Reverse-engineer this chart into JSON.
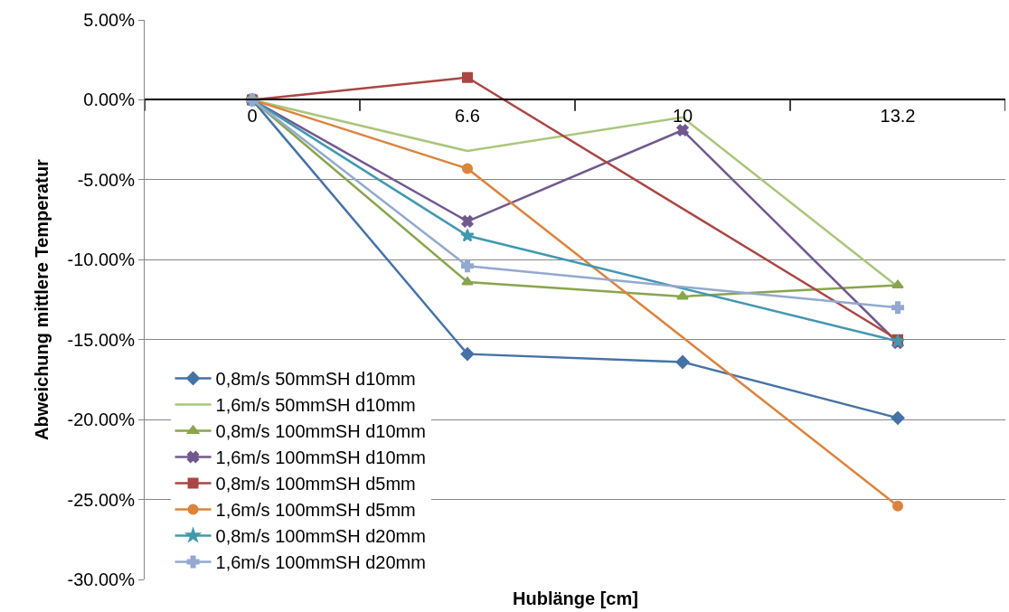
{
  "chart_data": {
    "type": "line",
    "xlabel": "Hublänge [cm]",
    "ylabel": "Abweichung mittlere Temperatur",
    "categories": [
      "0",
      "6.6",
      "10",
      "13.2"
    ],
    "ylim": [
      -30,
      5
    ],
    "yticks": [
      {
        "value": -30,
        "label": "-30.00%"
      },
      {
        "value": -25,
        "label": "-25.00%"
      },
      {
        "value": -20,
        "label": "-20.00%"
      },
      {
        "value": -15,
        "label": "-15.00%"
      },
      {
        "value": -10,
        "label": "-10.00%"
      },
      {
        "value": -5,
        "label": "-5.00%"
      },
      {
        "value": 0,
        "label": "0.00%"
      },
      {
        "value": 5,
        "label": "5.00%"
      }
    ],
    "grid": "y",
    "legend": "bottom left",
    "series": [
      {
        "name": "0,8m/s 50mmSH d10mm",
        "color": "#4572a7",
        "marker": "diamond",
        "values": [
          0,
          -15.9,
          -16.4,
          -19.9
        ]
      },
      {
        "name": "1,6m/s 50mmSH d10mm",
        "color": "#aac67c",
        "marker": "none",
        "values": [
          0,
          -3.2,
          -1.1,
          -11.7
        ]
      },
      {
        "name": "0,8m/s 100mmSH d10mm",
        "color": "#89a54e",
        "marker": "triangle",
        "values": [
          0,
          -11.4,
          -12.3,
          -11.6
        ]
      },
      {
        "name": "1,6m/s 100mmSH d10mm",
        "color": "#71588f",
        "marker": "cross",
        "values": [
          0,
          -7.6,
          -1.9,
          -15.2
        ]
      },
      {
        "name": "0,8m/s 100mmSH d5mm",
        "color": "#aa4643",
        "marker": "square",
        "values": [
          0,
          1.4,
          null,
          -15.0
        ]
      },
      {
        "name": "1,6m/s 100mmSH d5mm",
        "color": "#db843d",
        "marker": "circle",
        "values": [
          0,
          -4.3,
          null,
          -25.4
        ]
      },
      {
        "name": "0,8m/s 100mmSH d20mm",
        "color": "#4198af",
        "marker": "star",
        "values": [
          0,
          -8.5,
          null,
          -15.1
        ]
      },
      {
        "name": "1,6m/s 100mmSH d20mm",
        "color": "#93a9cf",
        "marker": "plus",
        "values": [
          0,
          -10.4,
          null,
          -13.0
        ]
      }
    ]
  }
}
